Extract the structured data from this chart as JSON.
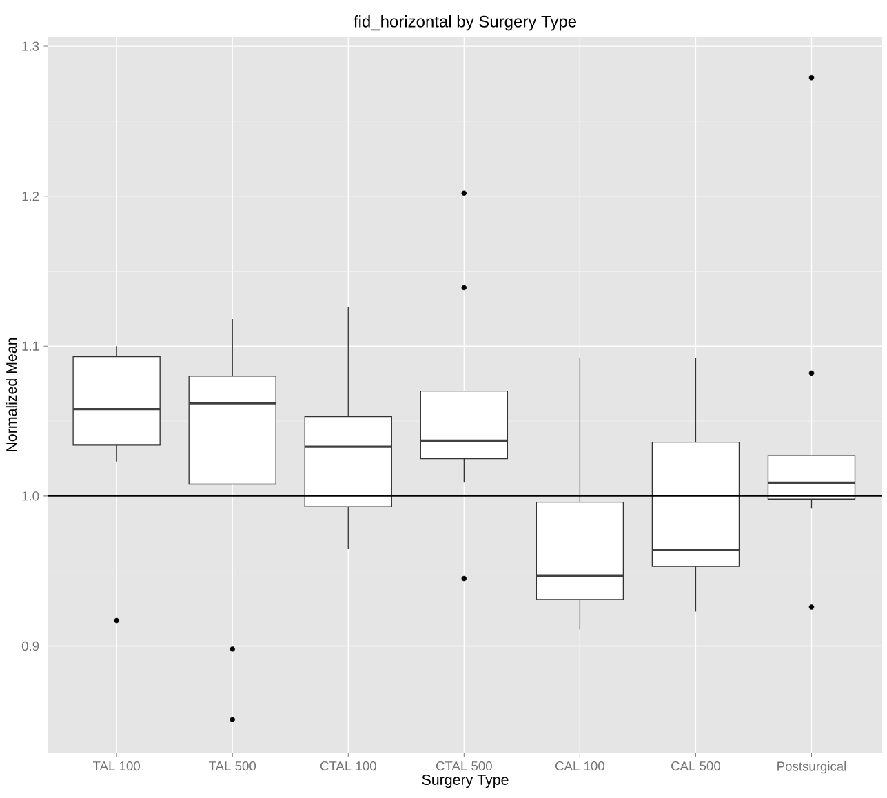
{
  "chart_data": {
    "type": "box",
    "title": "fid_horizontal by Surgery Type",
    "xlabel": "Surgery Type",
    "ylabel": "Normalized Mean",
    "categories": [
      "TAL 100",
      "TAL 500",
      "CTAL 100",
      "CTAL 500",
      "CAL 100",
      "CAL 500",
      "Postsurgical"
    ],
    "boxes": [
      {
        "low": 1.023,
        "q1": 1.034,
        "median": 1.058,
        "q3": 1.093,
        "high": 1.1,
        "outliers": [
          0.917
        ]
      },
      {
        "low": 1.008,
        "q1": 1.008,
        "median": 1.062,
        "q3": 1.08,
        "high": 1.118,
        "outliers": [
          0.898,
          0.851
        ]
      },
      {
        "low": 0.965,
        "q1": 0.993,
        "median": 1.033,
        "q3": 1.053,
        "high": 1.126
      },
      {
        "low": 1.009,
        "q1": 1.025,
        "median": 1.037,
        "q3": 1.07,
        "high": 1.07,
        "outliers": [
          1.202,
          1.139,
          0.945
        ]
      },
      {
        "low": 0.911,
        "q1": 0.931,
        "median": 0.947,
        "q3": 0.996,
        "high": 1.092
      },
      {
        "low": 0.923,
        "q1": 0.953,
        "median": 0.964,
        "q3": 1.036,
        "high": 1.092
      },
      {
        "low": 0.992,
        "q1": 0.998,
        "median": 1.009,
        "q3": 1.027,
        "high": 1.027,
        "outliers": [
          1.279,
          1.082,
          0.926
        ]
      }
    ],
    "ylim": [
      0.829,
      1.306
    ],
    "yticks": [
      0.9,
      {
        "value": 1.0,
        "label": "1.0"
      },
      1.1,
      1.2,
      1.3
    ],
    "grid": true,
    "ref_lines": [
      {
        "axis": "y",
        "value": 1.0,
        "color": "#000000"
      }
    ]
  }
}
